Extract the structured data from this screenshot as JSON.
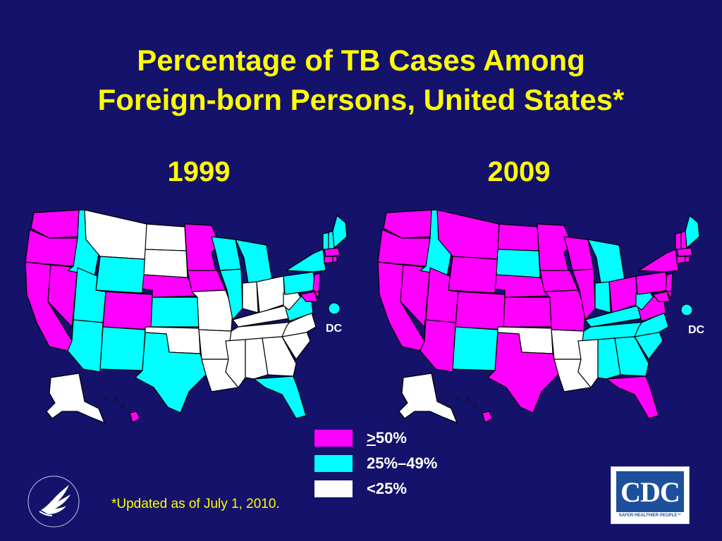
{
  "title_line1": "Percentage of TB Cases Among",
  "title_line2": "Foreign-born Persons, United States*",
  "maps": [
    {
      "year": "1999",
      "dc_label": "DC"
    },
    {
      "year": "2009",
      "dc_label": "DC"
    }
  ],
  "legend": [
    {
      "label": "50%",
      "prefix": ">",
      "color": "#ff00ff"
    },
    {
      "label": "25%–49%",
      "color": "#00ffff"
    },
    {
      "label": "<25%",
      "color": "#ffffff"
    }
  ],
  "footnote": "*Updated as of July 1, 2010.",
  "cdc_logo": {
    "text": "CDC",
    "tagline": "SAFER·HEALTHIER·PEOPLE™"
  },
  "colors": {
    "background": "#14126b",
    "title": "#ffff00",
    "high": "#ff00ff",
    "mid": "#00ffff",
    "low": "#ffffff"
  },
  "icons": [
    "hhs-eagle-seal-icon",
    "cdc-logo"
  ]
}
